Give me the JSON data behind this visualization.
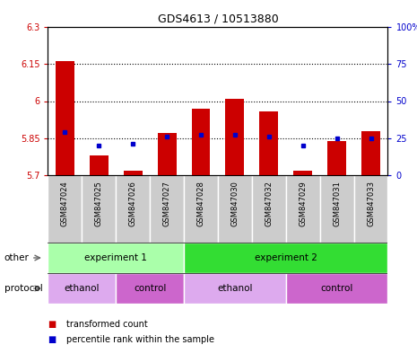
{
  "title": "GDS4613 / 10513880",
  "samples": [
    "GSM847024",
    "GSM847025",
    "GSM847026",
    "GSM847027",
    "GSM847028",
    "GSM847030",
    "GSM847032",
    "GSM847029",
    "GSM847031",
    "GSM847033"
  ],
  "bar_values": [
    6.16,
    5.78,
    5.72,
    5.87,
    5.97,
    6.01,
    5.96,
    5.72,
    5.84,
    5.88
  ],
  "bar_base": 5.7,
  "percentile_values": [
    29,
    20,
    21,
    26,
    27,
    27,
    26,
    20,
    25,
    25
  ],
  "bar_color": "#cc0000",
  "dot_color": "#0000cc",
  "ylim_left": [
    5.7,
    6.3
  ],
  "ylim_right": [
    0,
    100
  ],
  "yticks_left": [
    5.7,
    5.85,
    6.0,
    6.15,
    6.3
  ],
  "ytick_labels_left": [
    "5.7",
    "5.85",
    "6",
    "6.15",
    "6.3"
  ],
  "yticks_right": [
    0,
    25,
    50,
    75,
    100
  ],
  "ytick_labels_right": [
    "0",
    "25",
    "50",
    "75",
    "100%"
  ],
  "hlines": [
    5.85,
    6.0,
    6.15
  ],
  "groups_other": [
    {
      "label": "experiment 1",
      "start": 0,
      "end": 4,
      "color": "#aaffaa"
    },
    {
      "label": "experiment 2",
      "start": 4,
      "end": 10,
      "color": "#33dd33"
    }
  ],
  "groups_protocol": [
    {
      "label": "ethanol",
      "start": 0,
      "end": 2,
      "color": "#ddaaee"
    },
    {
      "label": "control",
      "start": 2,
      "end": 4,
      "color": "#cc66cc"
    },
    {
      "label": "ethanol",
      "start": 4,
      "end": 7,
      "color": "#ddaaee"
    },
    {
      "label": "control",
      "start": 7,
      "end": 10,
      "color": "#cc66cc"
    }
  ],
  "legend_items": [
    {
      "label": "transformed count",
      "color": "#cc0000"
    },
    {
      "label": "percentile rank within the sample",
      "color": "#0000cc"
    }
  ],
  "left_axis_color": "#cc0000",
  "right_axis_color": "#0000cc",
  "gray_cell": "#cccccc",
  "xname_row_color": "#cccccc",
  "other_label": "other",
  "protocol_label": "protocol"
}
